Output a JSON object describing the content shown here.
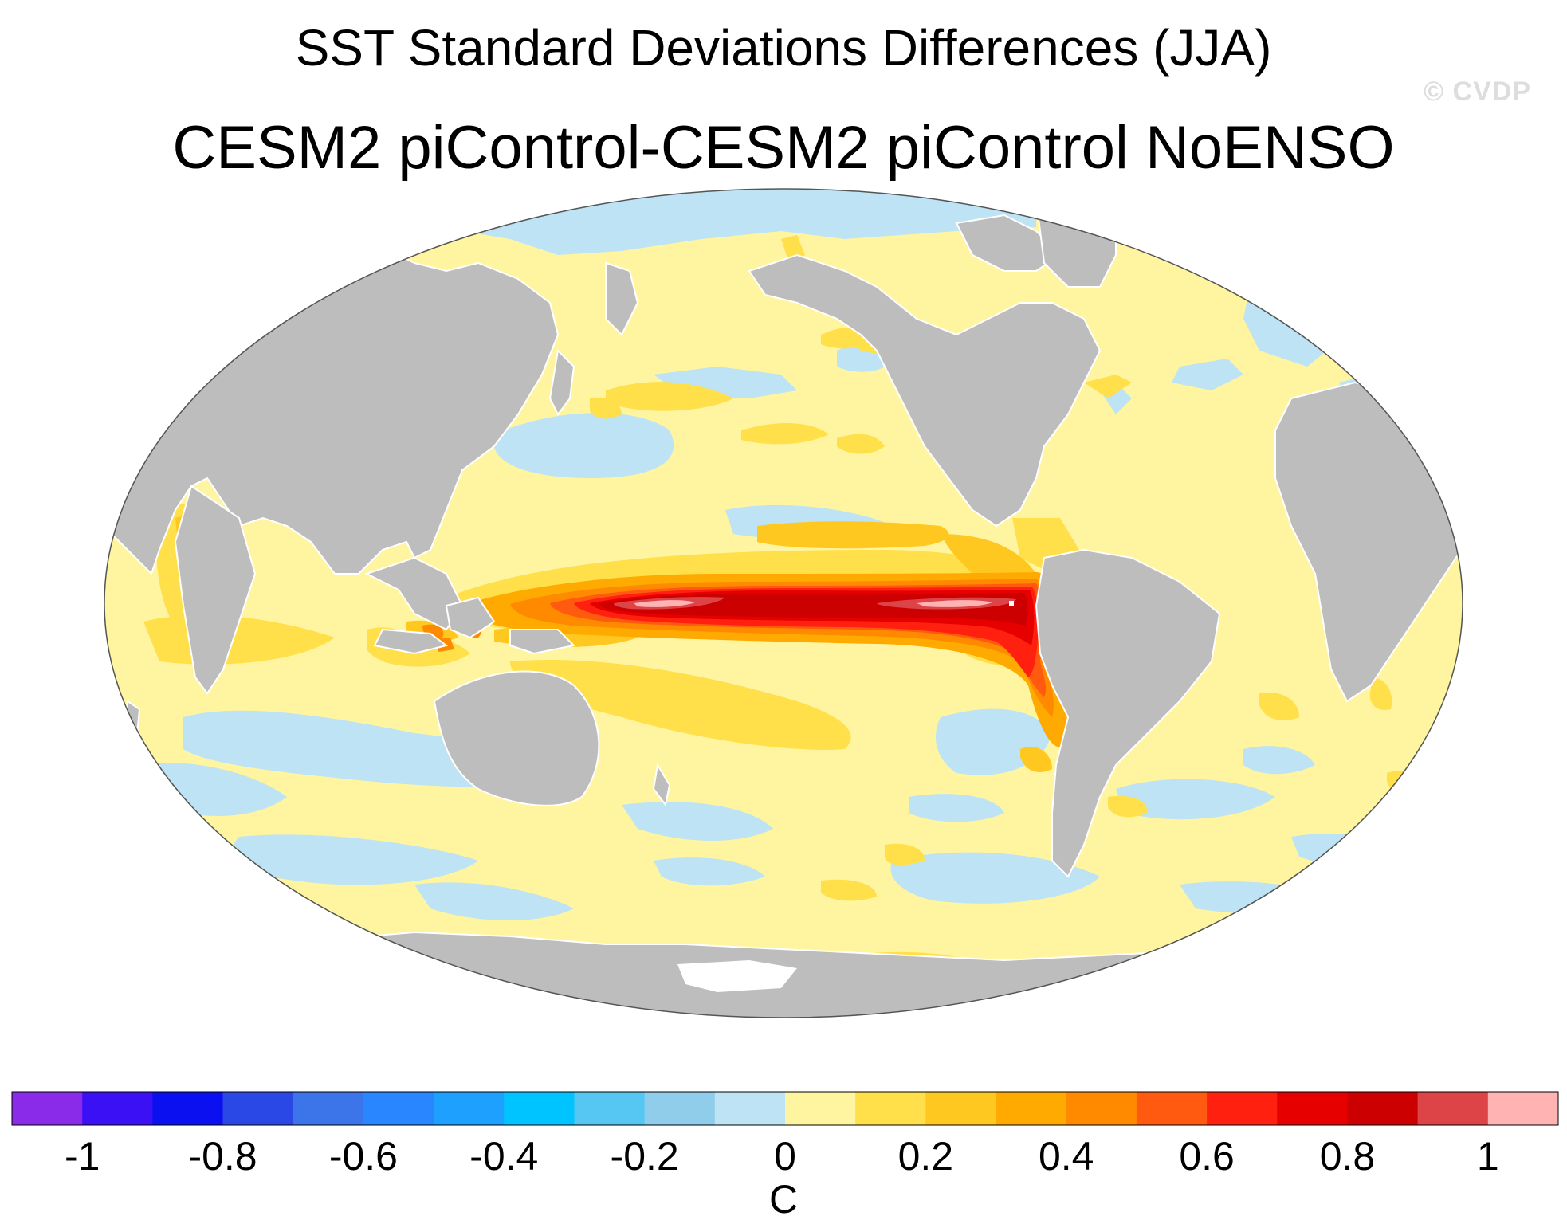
{
  "title": "SST Standard Deviations Differences (JJA)",
  "subtitle": "CESM2 piControl-CESM2 piControl NoENSO",
  "watermark": "© CVDP",
  "colors": {
    "land": "#bdbdbd",
    "ocean_base": "#fff5a0",
    "negative_small": "#bde3f4",
    "positive_02": "#ffe04a",
    "positive_03": "#ffc820",
    "positive_04": "#ffaa00",
    "positive_05": "#ff8a00",
    "positive_06": "#ff5a10",
    "positive_07": "#ff2010",
    "positive_08": "#e60000",
    "positive_09": "#cc0000",
    "positive_10": "#dd4448",
    "positive_max": "#ffb3b3",
    "no_data": "#ffffff"
  },
  "colorbar": {
    "bins": [
      "#8a2bea",
      "#3c10f5",
      "#0a10f0",
      "#2a48e6",
      "#3c74ea",
      "#2a86ff",
      "#1ea0ff",
      "#00c4ff",
      "#56c6f2",
      "#90cdea",
      "#bde3f4",
      "#fff5a0",
      "#ffe04a",
      "#ffc820",
      "#ffaa00",
      "#ff8a00",
      "#ff5a10",
      "#ff2010",
      "#e60000",
      "#cc0000",
      "#dd4448",
      "#ffb3b3"
    ],
    "tick_labels": [
      "-1",
      "-0.8",
      "-0.6",
      "-0.4",
      "-0.2",
      "0",
      "0.2",
      "0.4",
      "0.6",
      "0.8",
      "1"
    ],
    "tick_values": [
      -1,
      -0.8,
      -0.6,
      -0.4,
      -0.2,
      0,
      0.2,
      0.4,
      0.6,
      0.8,
      1
    ],
    "unit": "C"
  }
}
